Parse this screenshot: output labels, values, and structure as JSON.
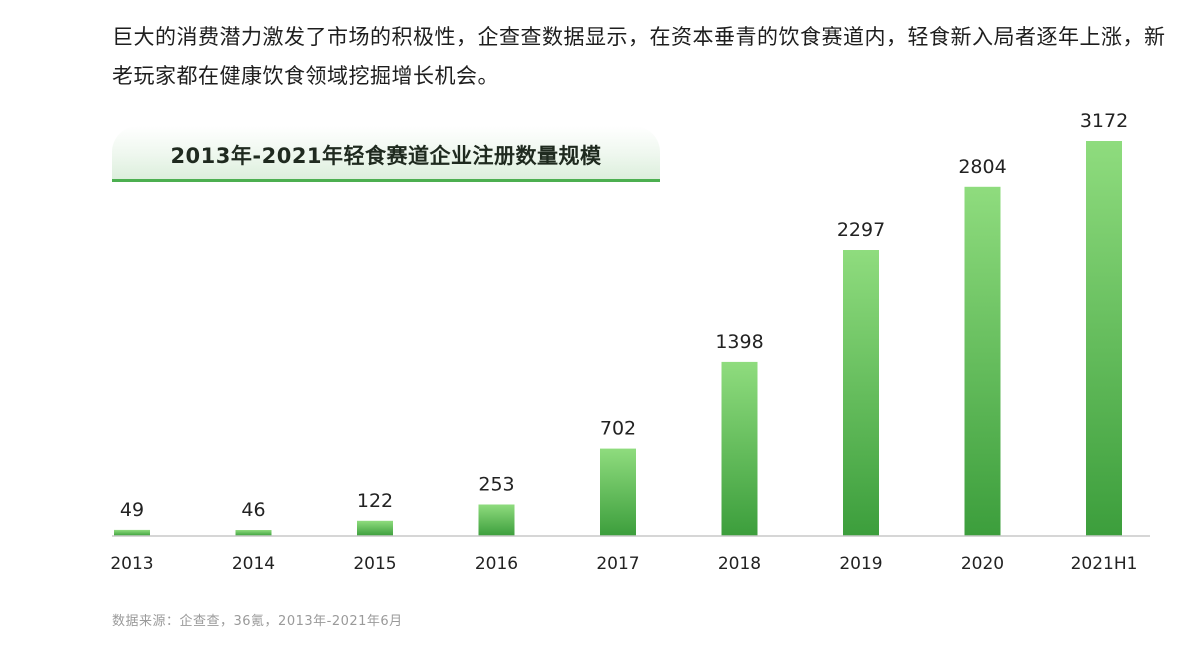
{
  "intro": {
    "text": "巨大的消费潜力激发了市场的积极性，企查查数据显示，在资本垂青的饮食赛道内，轻食新入局者逐年上涨，新老玩家都在健康饮食领域挖掘增长机会。"
  },
  "source": {
    "text": "数据来源：企查查，36氪，2013年-2021年6月"
  },
  "colors": {
    "bar_top": "#8fdc7e",
    "bar_bottom": "#3c9e3c",
    "axis": "#c8c8c8",
    "title_underline": "#4caf50"
  },
  "chart_data": {
    "type": "bar",
    "title": "2013年-2021年轻食赛道企业注册数量规模",
    "xlabel": "",
    "ylabel": "",
    "categories": [
      "2013",
      "2014",
      "2015",
      "2016",
      "2017",
      "2018",
      "2019",
      "2020",
      "2021H1"
    ],
    "values": [
      49,
      46,
      122,
      253,
      702,
      1398,
      2297,
      2804,
      3172
    ],
    "value_labels": [
      "49",
      "46",
      "122",
      "253",
      "702",
      "1398",
      "2297",
      "2804",
      "3172"
    ],
    "ylim": [
      0,
      3172
    ],
    "grid": false,
    "legend": "none"
  }
}
